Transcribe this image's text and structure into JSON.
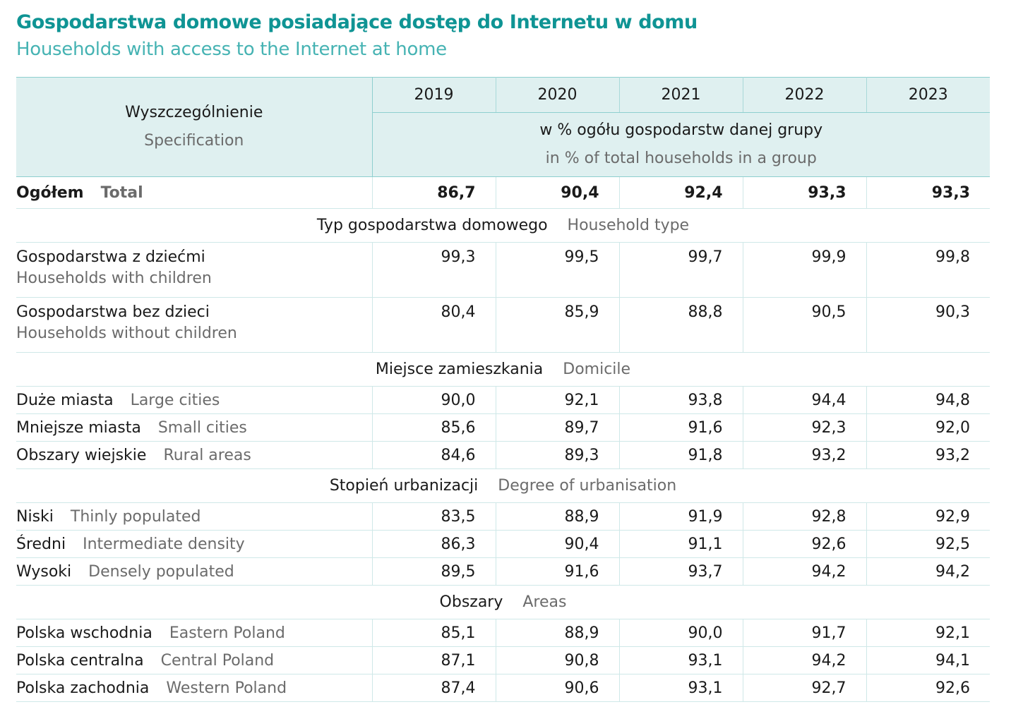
{
  "title_pl": "Gospodarstwa domowe posiadające dostęp do Internetu w domu",
  "title_en": "Households with access to the Internet at home",
  "header": {
    "spec_pl": "Wyszczególnienie",
    "spec_en": "Specification",
    "years": [
      "2019",
      "2020",
      "2021",
      "2022",
      "2023"
    ],
    "unit_pl": "w % ogółu gospodarstw danej grupy",
    "unit_en": "in % of total households in a group"
  },
  "total": {
    "pl": "Ogółem",
    "en": "Total",
    "values": [
      "86,7",
      "90,4",
      "92,4",
      "93,3",
      "93,3"
    ]
  },
  "sections": [
    {
      "pl": "Typ gospodarstwa domowego",
      "en": "Household type",
      "rows": [
        {
          "pl": "Gospodarstwa z dziećmi",
          "en": "Households with children",
          "values": [
            "99,3",
            "99,5",
            "99,7",
            "99,9",
            "99,8"
          ]
        },
        {
          "pl": "Gospodarstwa bez dzieci",
          "en": "Households without children",
          "values": [
            "80,4",
            "85,9",
            "88,8",
            "90,5",
            "90,3"
          ]
        }
      ]
    },
    {
      "pl": "Miejsce zamieszkania",
      "en": "Domicile",
      "rows": [
        {
          "pl": "Duże miasta",
          "en": "Large cities",
          "values": [
            "90,0",
            "92,1",
            "93,8",
            "94,4",
            "94,8"
          ]
        },
        {
          "pl": "Mniejsze miasta",
          "en": "Small cities",
          "values": [
            "85,6",
            "89,7",
            "91,6",
            "92,3",
            "92,0"
          ]
        },
        {
          "pl": "Obszary wiejskie",
          "en": "Rural areas",
          "values": [
            "84,6",
            "89,3",
            "91,8",
            "93,2",
            "93,2"
          ]
        }
      ]
    },
    {
      "pl": "Stopień urbanizacji",
      "en": "Degree of urbanisation",
      "rows": [
        {
          "pl": "Niski",
          "en": "Thinly populated",
          "values": [
            "83,5",
            "88,9",
            "91,9",
            "92,8",
            "92,9"
          ]
        },
        {
          "pl": "Średni",
          "en": "Intermediate density",
          "values": [
            "86,3",
            "90,4",
            "91,1",
            "92,6",
            "92,5"
          ]
        },
        {
          "pl": "Wysoki",
          "en": "Densely populated",
          "values": [
            "89,5",
            "91,6",
            "93,7",
            "94,2",
            "94,2"
          ]
        }
      ]
    },
    {
      "pl": "Obszary",
      "en": "Areas",
      "rows": [
        {
          "pl": "Polska wschodnia",
          "en": "Eastern Poland",
          "values": [
            "85,1",
            "88,9",
            "90,0",
            "91,7",
            "92,1"
          ]
        },
        {
          "pl": "Polska centralna",
          "en": "Central Poland",
          "values": [
            "87,1",
            "90,8",
            "93,1",
            "94,2",
            "94,1"
          ]
        },
        {
          "pl": "Polska zachodnia",
          "en": "Western Poland",
          "values": [
            "87,4",
            "90,6",
            "93,1",
            "92,7",
            "92,6"
          ]
        }
      ]
    }
  ]
}
